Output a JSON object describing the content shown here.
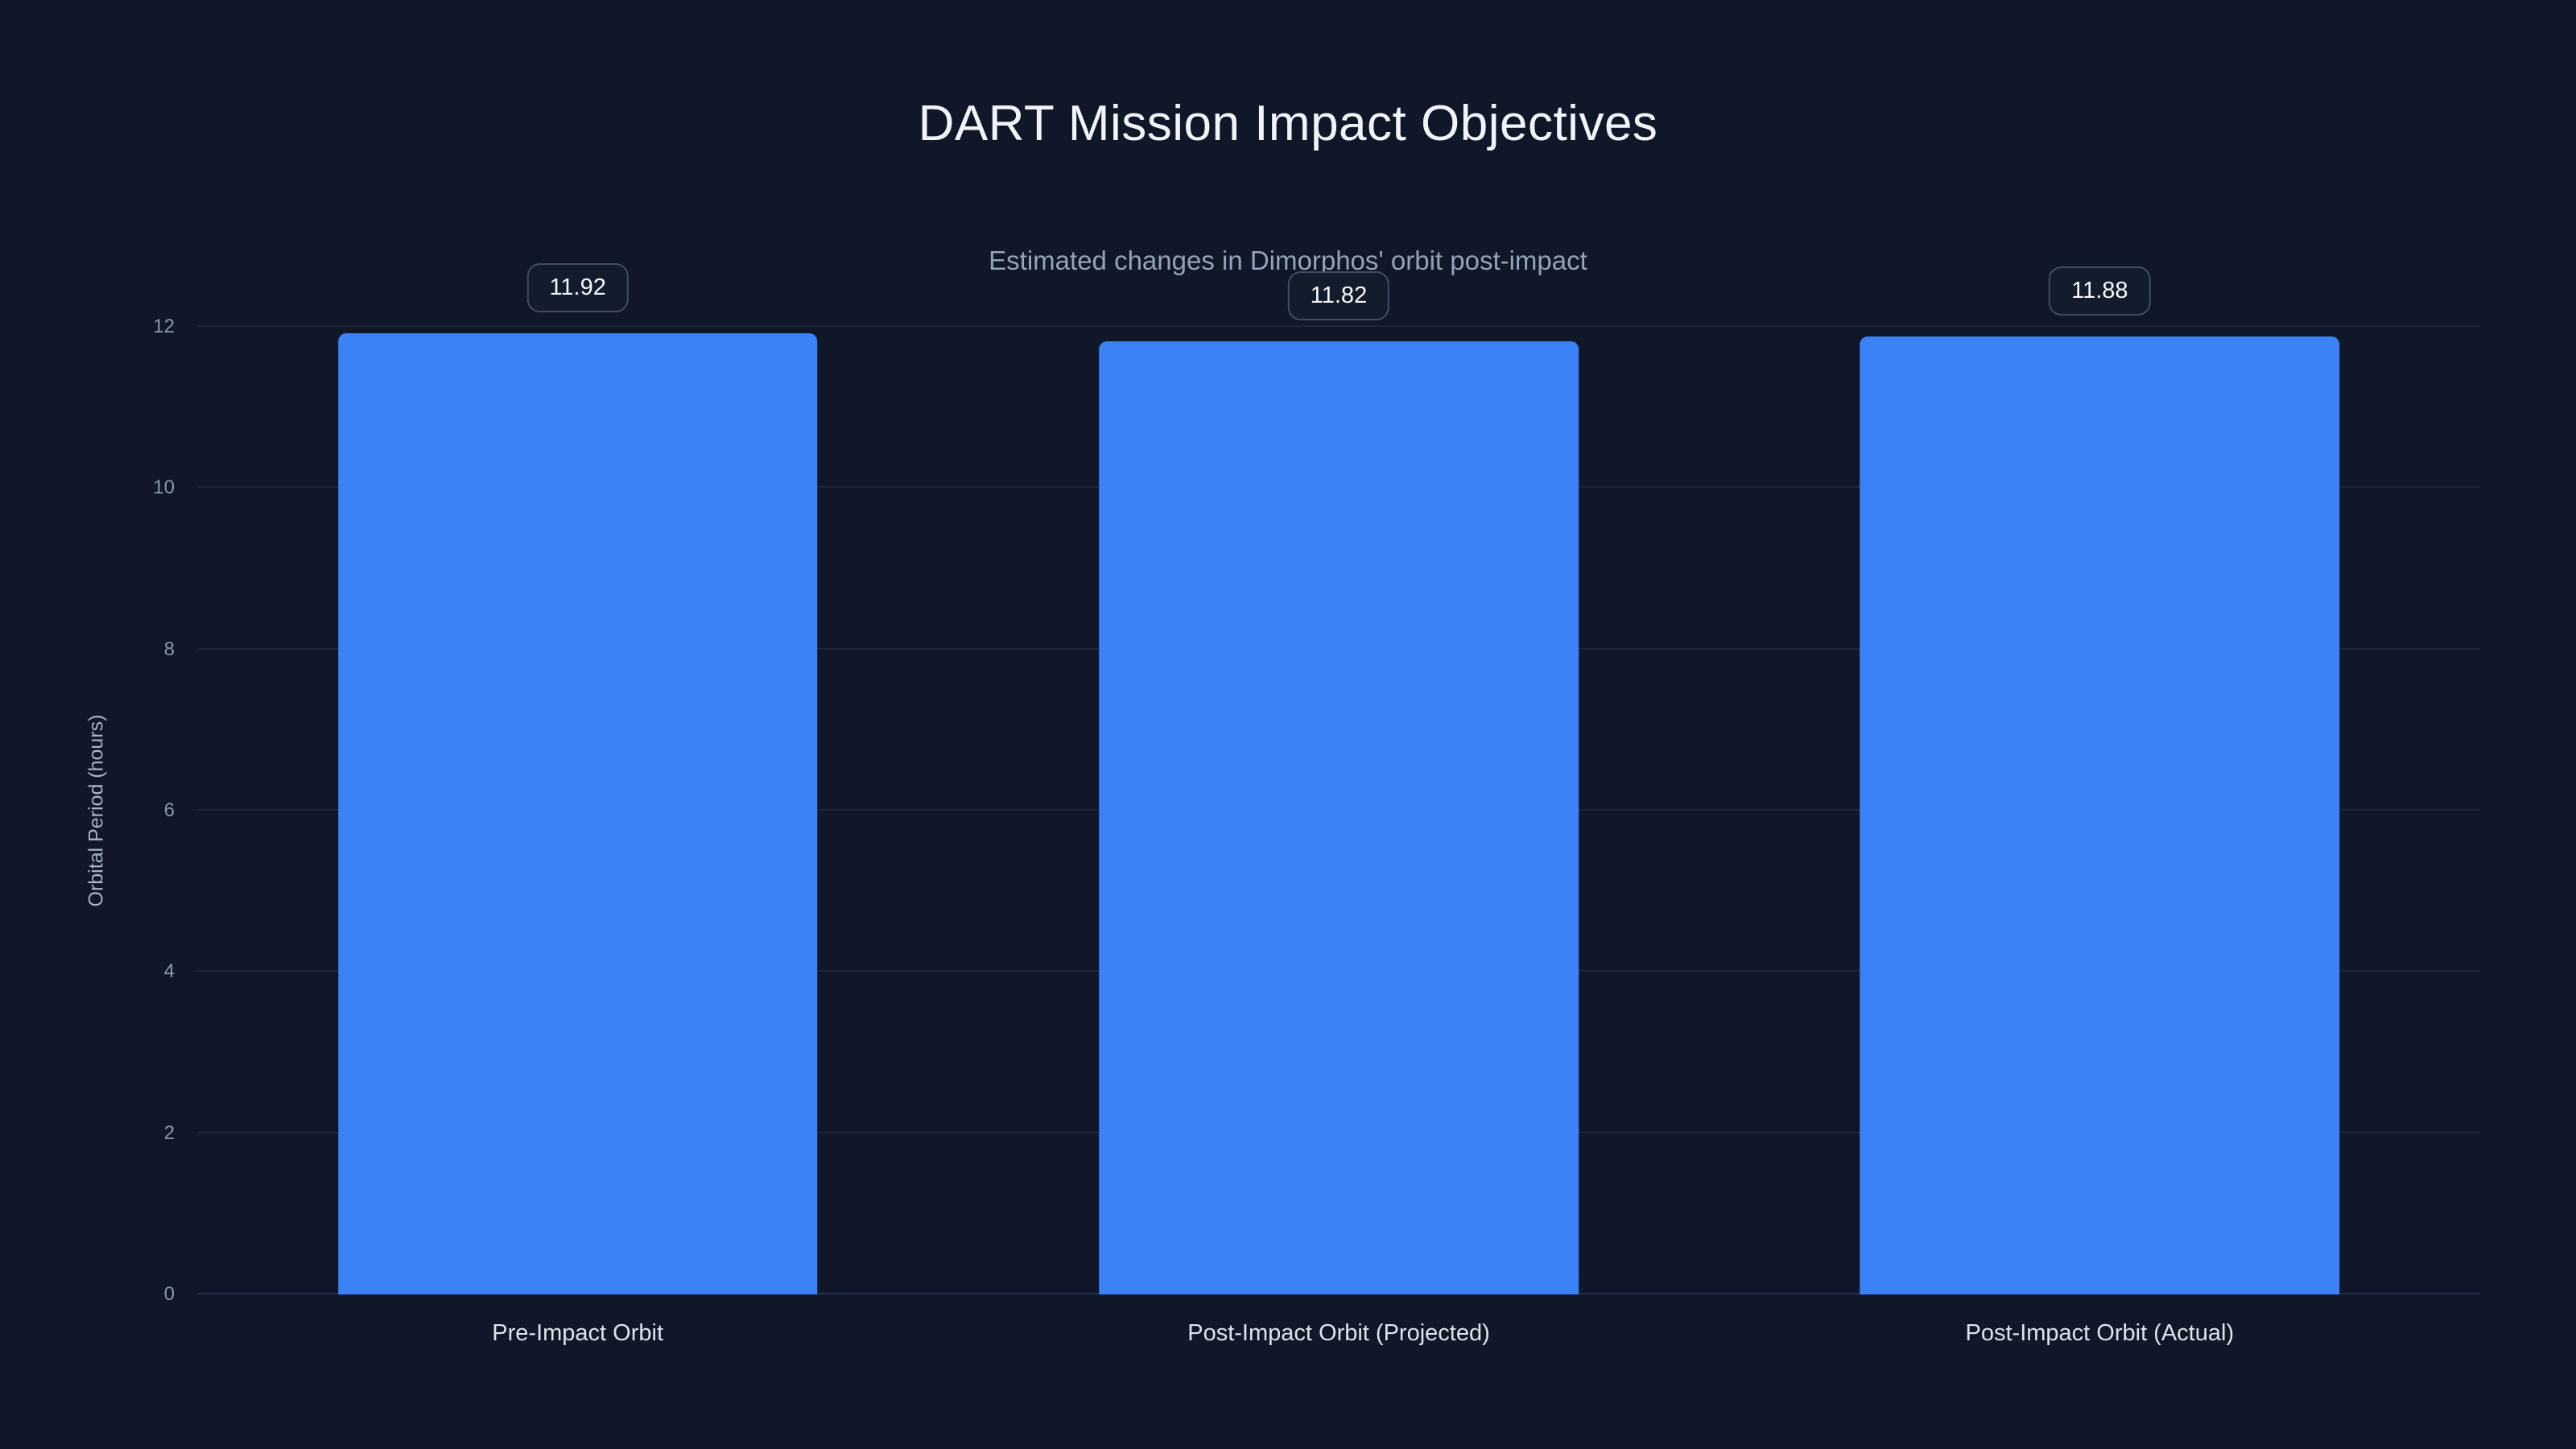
{
  "header": {
    "title": "DART Mission Impact Objectives",
    "subtitle": "Estimated changes in Dimorphos' orbit post-impact"
  },
  "colors": {
    "background": "#0f1729",
    "bar": "#3b82f6",
    "gridline": "#1c2638",
    "title_text": "#f1f5f9",
    "subtitle_text": "#94a3b8",
    "tick_text": "#8b98ab",
    "badge_border": "#3f4c61",
    "badge_text": "#f8fafc"
  },
  "chart_data": {
    "type": "bar",
    "title": "DART Mission Impact Objectives",
    "subtitle": "Estimated changes in Dimorphos' orbit post-impact",
    "categories": [
      "Pre-Impact Orbit",
      "Post-Impact Orbit (Projected)",
      "Post-Impact Orbit (Actual)"
    ],
    "values": [
      11.92,
      11.82,
      11.88
    ],
    "value_labels": [
      "11.92",
      "11.82",
      "11.88"
    ],
    "xlabel": "",
    "ylabel": "Orbital Period (hours)",
    "ylim": [
      0,
      12
    ],
    "yticks": [
      0,
      2,
      4,
      6,
      8,
      10,
      12
    ],
    "grid": true,
    "legend": false,
    "bar_color": "#3b82f6"
  }
}
